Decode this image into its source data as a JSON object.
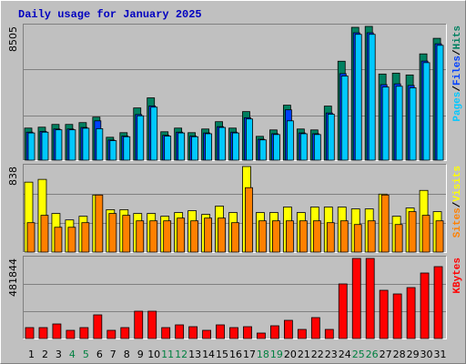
{
  "chart_data": [
    {
      "type": "bar",
      "title": "Daily usage for January 2025",
      "legend_separator": "/",
      "series": [
        {
          "name": "Hits",
          "color": "#008060",
          "values": [
            2039,
            2097,
            2272,
            2272,
            2388,
            2738,
            1456,
            1748,
            3320,
            3961,
            1806,
            2039,
            1748,
            1981,
            2447,
            2039,
            3087,
            1515,
            1922,
            3495,
            1981,
            1922,
            3437,
            6291,
            8446,
            8505,
            5476,
            5534,
            5417,
            6757,
            7747
          ]
        },
        {
          "name": "Files",
          "color": "#0040ff",
          "values": [
            1780,
            1830,
            1980,
            1980,
            2080,
            2500,
            1280,
            1530,
            2900,
            3450,
            1580,
            1780,
            1530,
            1730,
            2130,
            1780,
            2700,
            1330,
            1680,
            3200,
            1730,
            1680,
            3000,
            5500,
            8100,
            8100,
            4800,
            4850,
            4750,
            6300,
            7400
          ]
        },
        {
          "name": "Pages",
          "color": "#00c8ff",
          "values": [
            1730,
            1780,
            1930,
            1930,
            2030,
            2000,
            1240,
            1490,
            2820,
            3370,
            1530,
            1730,
            1490,
            1680,
            2080,
            1730,
            2620,
            1290,
            1630,
            2500,
            1680,
            1630,
            2920,
            5350,
            8000,
            8000,
            4650,
            4700,
            4600,
            6200,
            7300
          ]
        }
      ],
      "ylim": [
        0,
        8505
      ],
      "yticks": [
        8505
      ]
    },
    {
      "type": "bar",
      "series": [
        {
          "name": "Visits",
          "color": "#ffff00",
          "values": [
            685,
            712,
            378,
            315,
            351,
            559,
            415,
            415,
            378,
            378,
            351,
            387,
            405,
            369,
            450,
            387,
            838,
            387,
            387,
            441,
            387,
            441,
            441,
            441,
            423,
            423,
            568,
            351,
            432,
            604,
            396
          ]
        },
        {
          "name": "Sites",
          "color": "#ff8000",
          "values": [
            288,
            360,
            243,
            243,
            288,
            559,
            378,
            360,
            306,
            306,
            306,
            333,
            306,
            333,
            333,
            288,
            631,
            306,
            306,
            306,
            306,
            306,
            288,
            306,
            270,
            306,
            559,
            270,
            396,
            360,
            306
          ]
        }
      ],
      "ylim": [
        0,
        838
      ],
      "yticks": [
        838
      ]
    },
    {
      "type": "bar",
      "categories": [
        "1",
        "2",
        "3",
        "4",
        "5",
        "6",
        "7",
        "8",
        "9",
        "10",
        "11",
        "12",
        "13",
        "14",
        "15",
        "16",
        "17",
        "18",
        "19",
        "20",
        "21",
        "22",
        "23",
        "24",
        "25",
        "26",
        "27",
        "28",
        "29",
        "30",
        "31"
      ],
      "category_colors": [
        "#000000",
        "#000000",
        "#000000",
        "#008040",
        "#008040",
        "#000000",
        "#000000",
        "#000000",
        "#000000",
        "#000000",
        "#008040",
        "#008040",
        "#000000",
        "#000000",
        "#000000",
        "#000000",
        "#000000",
        "#008040",
        "#008040",
        "#000000",
        "#000000",
        "#000000",
        "#000000",
        "#000000",
        "#008040",
        "#008040",
        "#000000",
        "#000000",
        "#000000",
        "#000000",
        "#000000"
      ],
      "series": [
        {
          "name": "KBytes",
          "color": "#ff0000",
          "values": [
            65700,
            65700,
            87600,
            49275,
            65700,
            142350,
            49275,
            65700,
            164250,
            164250,
            65700,
            82125,
            71175,
            49275,
            82125,
            65700,
            71175,
            32850,
            76650,
            109500,
            54750,
            125925,
            54750,
            328500,
            481844,
            481844,
            290175,
            268275,
            306600,
            394200,
            432525
          ]
        }
      ],
      "ylim": [
        0,
        481844
      ],
      "yticks": [
        481844
      ]
    }
  ]
}
